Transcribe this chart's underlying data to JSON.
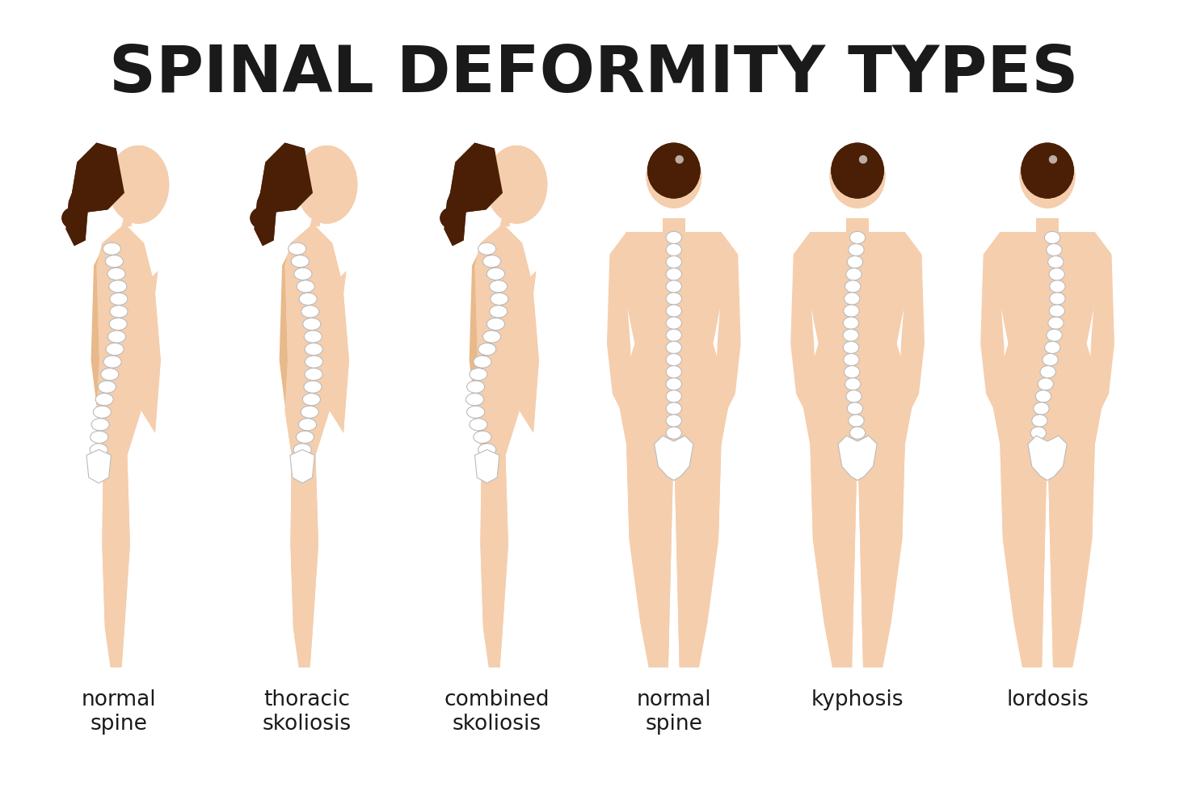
{
  "title": "SPINAL DEFORMITY TYPES",
  "title_fontsize": 58,
  "title_color": "#1a1a1a",
  "background_color": "#ffffff",
  "skin_color": "#F5CEAD",
  "skin_shadow": "#E8B98A",
  "hair_color": "#4A1F06",
  "labels": [
    "normal\nspine",
    "thoracic\nskoliosis",
    "combined\nskoliosis",
    "normal\nspine",
    "kyphosis",
    "lordosis"
  ],
  "label_fontsize": 19,
  "label_color": "#1a1a1a",
  "green_color": "#3a9a3a",
  "red_color": "#cc2200",
  "spine_vertebra_color": "#ffffff",
  "spine_vertebra_edge": "#bbbbbb",
  "sacrum_color": "#ffffff",
  "sacrum_edge": "#bbbbbb"
}
